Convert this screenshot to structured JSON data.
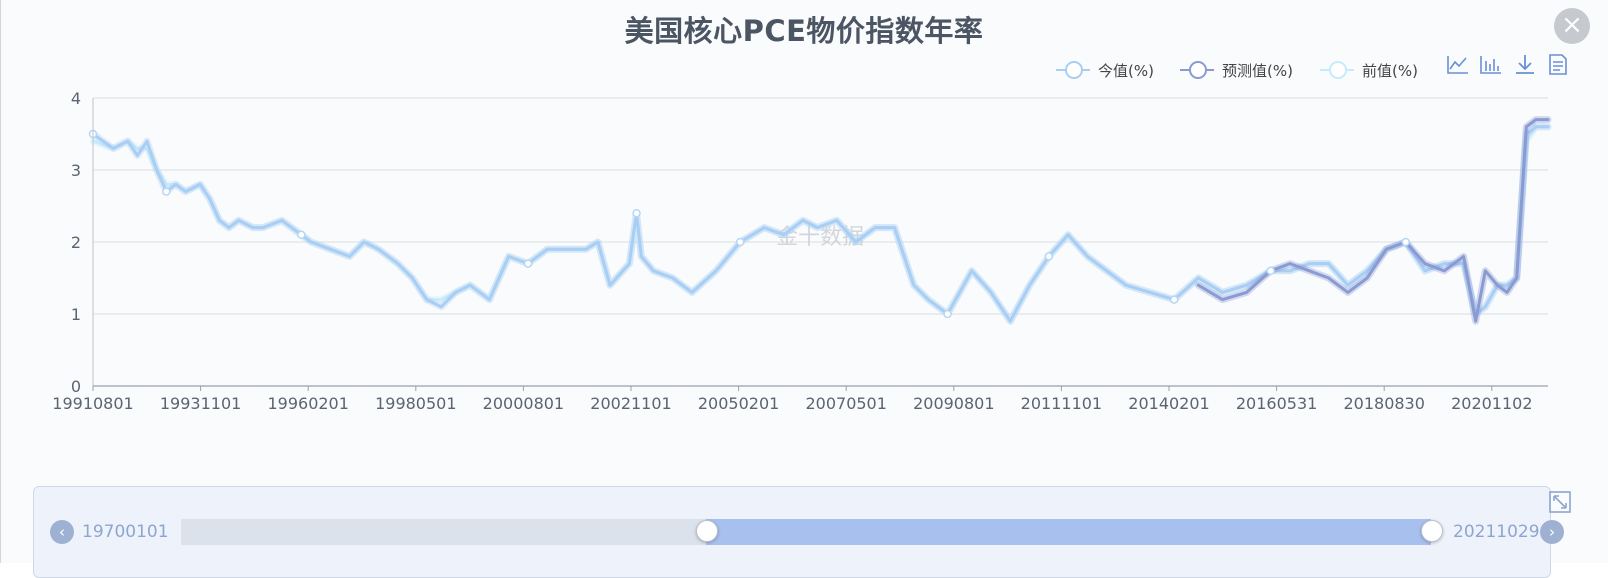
{
  "title": "美国核心PCE物价指数年率",
  "watermark": "金十数据",
  "legend": [
    {
      "label": "今值(%)",
      "color": "#a9cdf3"
    },
    {
      "label": "预测值(%)",
      "color": "#8a9bd4"
    },
    {
      "label": "前值(%)",
      "color": "#c6ecfb"
    }
  ],
  "toolbar": {
    "icons": [
      "line-chart-icon",
      "bar-chart-icon",
      "download-icon",
      "data-view-icon"
    ]
  },
  "close_label": "×",
  "slider": {
    "start_label": "19700101",
    "end_label": "20211029",
    "start_position": 0.42,
    "end_position": 1.0,
    "prev_label": "‹",
    "next_label": "›"
  },
  "chart_data": {
    "type": "line",
    "title": "美国核心PCE物价指数年率",
    "ylim": [
      0,
      4
    ],
    "yticks": [
      0,
      1,
      2,
      3,
      4
    ],
    "xticks": [
      "19910801",
      "19931101",
      "19960201",
      "19980501",
      "20000801",
      "20021101",
      "20050201",
      "20070501",
      "20090801",
      "20111101",
      "20140201",
      "20160531",
      "20180830",
      "20201102"
    ],
    "grid": true,
    "legend_position": "top-right",
    "x_years": [
      1991.58,
      1992.0,
      1992.3,
      1992.5,
      1992.7,
      1992.9,
      1993.1,
      1993.3,
      1993.5,
      1993.8,
      1994.0,
      1994.2,
      1994.4,
      1994.6,
      1994.9,
      1995.1,
      1995.5,
      1995.9,
      1996.1,
      1996.5,
      1996.9,
      1997.2,
      1997.5,
      1997.9,
      1998.2,
      1998.5,
      1998.8,
      1999.1,
      1999.4,
      1999.8,
      2000.2,
      2000.6,
      2001.0,
      2001.4,
      2001.8,
      2002.05,
      2002.3,
      2002.7,
      2002.85,
      2002.95,
      2003.2,
      2003.6,
      2004.0,
      2004.5,
      2005.0,
      2005.5,
      2005.9,
      2006.3,
      2006.6,
      2007.0,
      2007.4,
      2007.8,
      2008.2,
      2008.6,
      2008.9,
      2009.3,
      2009.8,
      2010.2,
      2010.6,
      2011.0,
      2011.4,
      2011.8,
      2012.2,
      2012.6,
      2013.0,
      2013.5,
      2014.0,
      2014.5,
      2015.0,
      2015.5,
      2016.0,
      2016.4,
      2016.8,
      2017.2,
      2017.6,
      2018.0,
      2018.4,
      2018.8,
      2019.2,
      2019.6,
      2020.0,
      2020.25,
      2020.45,
      2020.7,
      2020.9,
      2021.1,
      2021.3,
      2021.5,
      2021.75
    ],
    "series": [
      {
        "name": "今值(%)",
        "color": "#a9cdf3",
        "values": [
          3.5,
          3.3,
          3.4,
          3.2,
          3.4,
          3.0,
          2.7,
          2.8,
          2.7,
          2.8,
          2.6,
          2.3,
          2.2,
          2.3,
          2.2,
          2.2,
          2.3,
          2.1,
          2.0,
          1.9,
          1.8,
          2.0,
          1.9,
          1.7,
          1.5,
          1.2,
          1.1,
          1.3,
          1.4,
          1.2,
          1.8,
          1.7,
          1.9,
          1.9,
          1.9,
          2.0,
          1.4,
          1.7,
          2.4,
          1.8,
          1.6,
          1.5,
          1.3,
          1.6,
          2.0,
          2.2,
          2.1,
          2.3,
          2.2,
          2.3,
          2.0,
          2.2,
          2.2,
          1.4,
          1.2,
          1.0,
          1.6,
          1.3,
          0.9,
          1.4,
          1.8,
          2.1,
          1.8,
          1.6,
          1.4,
          1.3,
          1.2,
          1.5,
          1.3,
          1.4,
          1.6,
          1.6,
          1.7,
          1.7,
          1.4,
          1.6,
          1.9,
          2.0,
          1.6,
          1.7,
          1.7,
          1.0,
          1.1,
          1.4,
          1.4,
          1.5,
          3.5,
          3.6,
          3.6
        ]
      },
      {
        "name": "预测值(%)",
        "color": "#8a9bd4",
        "values": [
          null,
          null,
          null,
          null,
          null,
          null,
          null,
          null,
          null,
          null,
          null,
          null,
          null,
          null,
          null,
          null,
          null,
          null,
          null,
          null,
          null,
          null,
          null,
          null,
          null,
          null,
          null,
          null,
          null,
          null,
          null,
          null,
          null,
          null,
          null,
          null,
          null,
          null,
          null,
          null,
          null,
          null,
          null,
          null,
          null,
          null,
          null,
          null,
          null,
          null,
          null,
          null,
          null,
          null,
          null,
          null,
          null,
          null,
          null,
          null,
          null,
          null,
          null,
          null,
          null,
          null,
          null,
          1.4,
          1.2,
          1.3,
          1.6,
          1.7,
          1.6,
          1.5,
          1.3,
          1.5,
          1.9,
          2.0,
          1.7,
          1.6,
          1.8,
          0.9,
          1.6,
          1.4,
          1.3,
          1.5,
          3.6,
          3.7,
          3.7
        ]
      },
      {
        "name": "前值(%)",
        "color": "#c6ecfb",
        "values": [
          3.4,
          3.3,
          3.4,
          3.3,
          3.3,
          3.0,
          2.8,
          2.8,
          2.7,
          2.8,
          2.6,
          2.3,
          2.2,
          2.3,
          2.2,
          2.2,
          2.3,
          2.1,
          2.0,
          1.9,
          1.8,
          2.0,
          1.9,
          1.7,
          1.5,
          1.2,
          1.2,
          1.3,
          1.4,
          1.2,
          1.8,
          1.7,
          1.9,
          1.9,
          1.9,
          2.0,
          1.4,
          1.7,
          2.4,
          1.8,
          1.6,
          1.5,
          1.3,
          1.6,
          2.0,
          2.2,
          2.1,
          2.3,
          2.2,
          2.3,
          2.0,
          2.2,
          2.2,
          1.4,
          1.2,
          1.0,
          1.6,
          1.3,
          0.9,
          1.4,
          1.8,
          2.1,
          1.8,
          1.6,
          1.4,
          1.3,
          1.2,
          1.5,
          1.3,
          1.4,
          1.6,
          1.6,
          1.7,
          1.7,
          1.4,
          1.6,
          1.9,
          2.0,
          1.6,
          1.7,
          1.7,
          1.0,
          1.1,
          1.4,
          1.4,
          1.5,
          3.4,
          3.6,
          3.6
        ]
      }
    ]
  }
}
